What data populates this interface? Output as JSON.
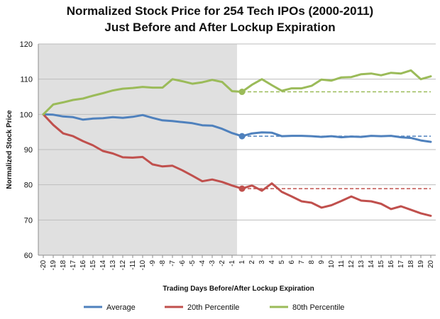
{
  "chart_data": {
    "type": "line",
    "title_lines": [
      "Normalized Stock Price for 254 Tech IPOs (2000-2011)",
      "Just Before and After Lockup Expiration"
    ],
    "xlabel": "Trading Days Before/After Lockup Expiration",
    "ylabel": "Normalized Stock Price",
    "ylim": [
      60,
      120
    ],
    "yticks": [
      60,
      70,
      80,
      90,
      100,
      110,
      120
    ],
    "categories": [
      "-20",
      "-19",
      "-18",
      "-17",
      "-16",
      "-15",
      "-14",
      "-13",
      "-12",
      "-11",
      "-10",
      "-9",
      "-8",
      "-7",
      "-6",
      "-5",
      "-4",
      "-3",
      "-2",
      "-1",
      "1",
      "2",
      "3",
      "4",
      "5",
      "6",
      "7",
      "8",
      "9",
      "10",
      "11",
      "12",
      "13",
      "14",
      "15",
      "16",
      "17",
      "18",
      "19",
      "20"
    ],
    "shaded_region": {
      "from": "-20",
      "to": "-1",
      "color": "#e0e0e0"
    },
    "grid": "horizontal",
    "legend_position": "bottom",
    "series": [
      {
        "name": "Average",
        "color": "#4f81bd",
        "values": [
          100,
          99.9,
          99.4,
          99.2,
          98.5,
          98.8,
          98.9,
          99.2,
          99.0,
          99.3,
          99.8,
          99.0,
          98.3,
          98.1,
          97.8,
          97.5,
          96.9,
          96.8,
          95.9,
          94.7,
          93.8,
          94.6,
          94.9,
          94.8,
          93.8,
          93.9,
          93.9,
          93.8,
          93.6,
          93.8,
          93.5,
          93.7,
          93.6,
          93.9,
          93.8,
          93.9,
          93.5,
          93.3,
          92.6,
          92.2
        ],
        "marker_at": "1",
        "reference_value": 93.8
      },
      {
        "name": "20th Percentile",
        "color": "#c0504d",
        "values": [
          100,
          97.0,
          94.6,
          93.8,
          92.4,
          91.2,
          89.6,
          88.9,
          87.8,
          87.7,
          87.9,
          85.8,
          85.2,
          85.4,
          84.1,
          82.6,
          81.0,
          81.5,
          80.8,
          79.8,
          78.9,
          79.8,
          78.3,
          80.4,
          78.0,
          76.7,
          75.3,
          74.9,
          73.5,
          74.2,
          75.4,
          76.7,
          75.5,
          75.3,
          74.6,
          73.1,
          73.9,
          72.9,
          71.9,
          71.2
        ],
        "marker_at": "1",
        "reference_value": 78.9
      },
      {
        "name": "80th Percentile",
        "color": "#9bbb59",
        "values": [
          100,
          102.8,
          103.4,
          104.1,
          104.5,
          105.3,
          106.0,
          106.8,
          107.3,
          107.5,
          107.8,
          107.6,
          107.6,
          110.0,
          109.4,
          108.7,
          109.1,
          109.8,
          109.2,
          106.6,
          106.4,
          108.4,
          110.0,
          108.3,
          106.7,
          107.4,
          107.4,
          108.1,
          109.9,
          109.6,
          110.5,
          110.6,
          111.4,
          111.6,
          111.1,
          111.8,
          111.6,
          112.5,
          110.0,
          110.8
        ],
        "marker_at": "1",
        "reference_value": 106.4
      }
    ]
  }
}
